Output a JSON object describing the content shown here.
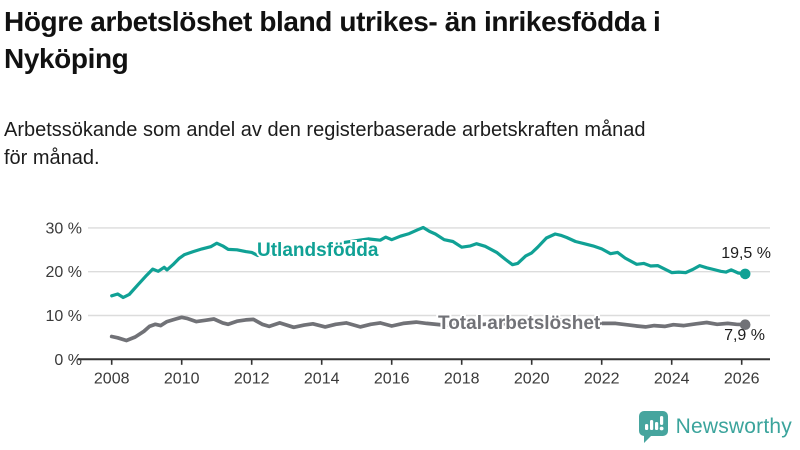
{
  "header": {
    "title": "Högre arbetslöshet bland utrikes- än inrikesfödda i Nyköping",
    "subtitle": "Arbetssökande som andel av den registerbaserade arbetskraften månad för månad."
  },
  "branding": {
    "name": "Newsworthy",
    "color": "#3ba49c",
    "icon": "newsworthy-chart-speech-bubble-icon"
  },
  "chart_data": {
    "type": "line",
    "title": "Högre arbetslöshet bland utrikes- än inrikesfödda i Nyköping",
    "xlabel": "",
    "ylabel": "",
    "unit": "%",
    "grid": "horizontal",
    "legend_position": "inline-labels",
    "x_range": [
      2007.3,
      2026.8
    ],
    "y_range": [
      0,
      33
    ],
    "x_ticks": [
      2008,
      2010,
      2012,
      2014,
      2016,
      2018,
      2020,
      2022,
      2024,
      2026
    ],
    "x_tick_labels": [
      "2008",
      "2010",
      "2012",
      "2014",
      "2016",
      "2018",
      "2020",
      "2022",
      "2024",
      "2026"
    ],
    "y_ticks": [
      0,
      10,
      20,
      30
    ],
    "y_tick_labels": [
      "0 %",
      "10 %",
      "20 %",
      "30 %"
    ],
    "series": [
      {
        "name": "Utlandsfödda",
        "color": "#10a195",
        "end_value": 19.5,
        "end_label": "19,5 %",
        "points": [
          [
            2008.0,
            14.5
          ],
          [
            2008.17,
            14.9
          ],
          [
            2008.33,
            14.1
          ],
          [
            2008.5,
            14.8
          ],
          [
            2008.75,
            17.0
          ],
          [
            2009.0,
            19.2
          ],
          [
            2009.17,
            20.6
          ],
          [
            2009.33,
            20.1
          ],
          [
            2009.5,
            21.0
          ],
          [
            2009.58,
            20.4
          ],
          [
            2009.75,
            21.6
          ],
          [
            2009.92,
            23.0
          ],
          [
            2010.08,
            23.9
          ],
          [
            2010.33,
            24.6
          ],
          [
            2010.58,
            25.2
          ],
          [
            2010.83,
            25.7
          ],
          [
            2011.0,
            26.5
          ],
          [
            2011.17,
            25.9
          ],
          [
            2011.33,
            25.1
          ],
          [
            2011.58,
            25.0
          ],
          [
            2011.83,
            24.6
          ],
          [
            2012.0,
            24.4
          ],
          [
            2012.17,
            23.7
          ],
          [
            2012.5,
            24.0
          ],
          [
            2013.0,
            24.7
          ],
          [
            2013.5,
            25.3
          ],
          [
            2014.0,
            25.9
          ],
          [
            2014.5,
            26.5
          ],
          [
            2015.0,
            27.1
          ],
          [
            2015.33,
            27.5
          ],
          [
            2015.67,
            27.2
          ],
          [
            2015.83,
            27.9
          ],
          [
            2016.0,
            27.3
          ],
          [
            2016.25,
            28.1
          ],
          [
            2016.5,
            28.7
          ],
          [
            2016.75,
            29.6
          ],
          [
            2016.9,
            30.1
          ],
          [
            2017.08,
            29.2
          ],
          [
            2017.25,
            28.6
          ],
          [
            2017.5,
            27.3
          ],
          [
            2017.75,
            26.9
          ],
          [
            2018.0,
            25.6
          ],
          [
            2018.25,
            25.9
          ],
          [
            2018.42,
            26.4
          ],
          [
            2018.67,
            25.8
          ],
          [
            2019.0,
            24.4
          ],
          [
            2019.25,
            22.8
          ],
          [
            2019.45,
            21.6
          ],
          [
            2019.6,
            21.9
          ],
          [
            2019.83,
            23.6
          ],
          [
            2020.0,
            24.3
          ],
          [
            2020.17,
            25.6
          ],
          [
            2020.42,
            27.7
          ],
          [
            2020.67,
            28.6
          ],
          [
            2020.83,
            28.3
          ],
          [
            2021.0,
            27.8
          ],
          [
            2021.25,
            26.9
          ],
          [
            2021.5,
            26.4
          ],
          [
            2021.75,
            25.9
          ],
          [
            2022.0,
            25.2
          ],
          [
            2022.25,
            24.1
          ],
          [
            2022.45,
            24.4
          ],
          [
            2022.67,
            23.1
          ],
          [
            2023.0,
            21.7
          ],
          [
            2023.2,
            21.9
          ],
          [
            2023.4,
            21.3
          ],
          [
            2023.6,
            21.4
          ],
          [
            2023.8,
            20.6
          ],
          [
            2024.0,
            19.8
          ],
          [
            2024.2,
            19.9
          ],
          [
            2024.4,
            19.8
          ],
          [
            2024.6,
            20.5
          ],
          [
            2024.8,
            21.4
          ],
          [
            2025.0,
            20.9
          ],
          [
            2025.2,
            20.5
          ],
          [
            2025.4,
            20.1
          ],
          [
            2025.55,
            19.9
          ],
          [
            2025.7,
            20.4
          ],
          [
            2025.9,
            19.7
          ],
          [
            2026.1,
            19.5
          ]
        ]
      },
      {
        "name": "Total arbetslöshet",
        "color": "#717277",
        "end_value": 7.9,
        "end_label": "7,9 %",
        "points": [
          [
            2008.0,
            5.2
          ],
          [
            2008.17,
            4.9
          ],
          [
            2008.42,
            4.3
          ],
          [
            2008.67,
            5.1
          ],
          [
            2008.92,
            6.4
          ],
          [
            2009.08,
            7.5
          ],
          [
            2009.25,
            8.0
          ],
          [
            2009.4,
            7.7
          ],
          [
            2009.58,
            8.6
          ],
          [
            2009.83,
            9.2
          ],
          [
            2010.0,
            9.6
          ],
          [
            2010.17,
            9.3
          ],
          [
            2010.42,
            8.6
          ],
          [
            2010.67,
            8.9
          ],
          [
            2010.92,
            9.2
          ],
          [
            2011.17,
            8.3
          ],
          [
            2011.33,
            8.0
          ],
          [
            2011.58,
            8.7
          ],
          [
            2011.83,
            9.0
          ],
          [
            2012.05,
            9.1
          ],
          [
            2012.3,
            8.0
          ],
          [
            2012.5,
            7.5
          ],
          [
            2012.8,
            8.3
          ],
          [
            2013.2,
            7.3
          ],
          [
            2013.5,
            7.8
          ],
          [
            2013.75,
            8.1
          ],
          [
            2014.1,
            7.4
          ],
          [
            2014.4,
            8.0
          ],
          [
            2014.7,
            8.3
          ],
          [
            2015.1,
            7.4
          ],
          [
            2015.4,
            8.0
          ],
          [
            2015.67,
            8.3
          ],
          [
            2016.0,
            7.6
          ],
          [
            2016.33,
            8.2
          ],
          [
            2016.7,
            8.5
          ],
          [
            2017.0,
            8.2
          ],
          [
            2017.5,
            7.8
          ],
          [
            2018.0,
            8.2
          ],
          [
            2018.5,
            7.9
          ],
          [
            2019.0,
            8.2
          ],
          [
            2019.5,
            8.0
          ],
          [
            2020.0,
            8.6
          ],
          [
            2020.5,
            9.2
          ],
          [
            2021.0,
            8.8
          ],
          [
            2021.5,
            8.4
          ],
          [
            2022.0,
            8.2
          ],
          [
            2022.4,
            8.2
          ],
          [
            2022.7,
            7.9
          ],
          [
            2023.0,
            7.6
          ],
          [
            2023.25,
            7.4
          ],
          [
            2023.5,
            7.7
          ],
          [
            2023.8,
            7.5
          ],
          [
            2024.05,
            7.9
          ],
          [
            2024.35,
            7.7
          ],
          [
            2024.7,
            8.1
          ],
          [
            2025.0,
            8.4
          ],
          [
            2025.3,
            8.0
          ],
          [
            2025.6,
            8.2
          ],
          [
            2025.85,
            8.0
          ],
          [
            2026.1,
            7.9
          ]
        ]
      }
    ]
  }
}
